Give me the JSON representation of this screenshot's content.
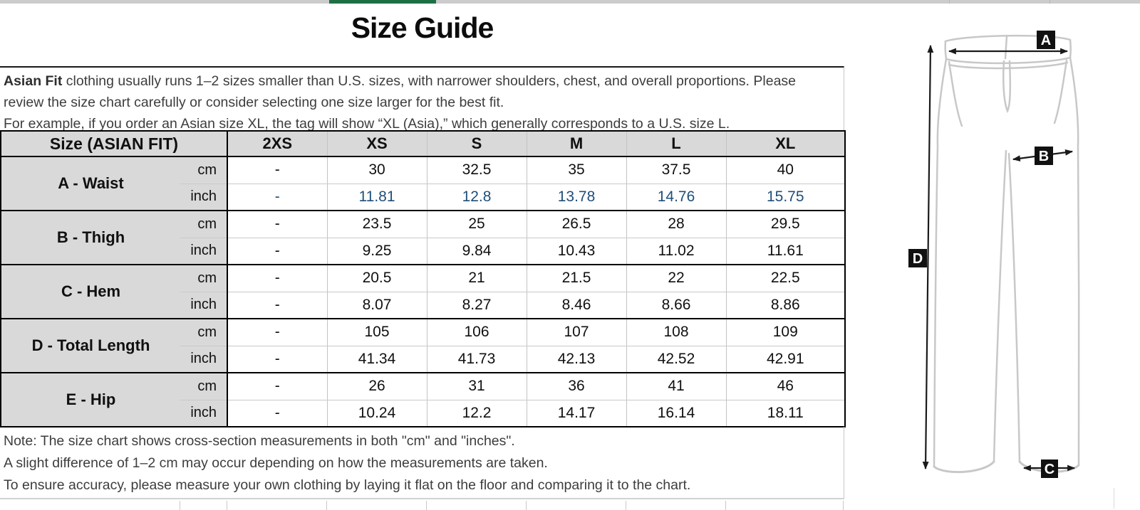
{
  "title": "Size Guide",
  "intro": {
    "bold_lead": "Asian Fit",
    "line1_rest": " clothing usually runs 1–2 sizes smaller than U.S. sizes, with narrower shoulders, chest, and overall proportions. Please review the size chart carefully or consider selecting one size larger for the best fit.",
    "line2": "For example, if you order an Asian size XL, the tag will show “XL (Asia),” which generally corresponds to a U.S. size L."
  },
  "table": {
    "header": {
      "label": "Size (ASIAN FIT)",
      "sizes": [
        "2XS",
        "XS",
        "S",
        "M",
        "L",
        "XL"
      ]
    },
    "unit_labels": {
      "cm": "cm",
      "inch": "inch"
    },
    "rows": [
      {
        "label": "A - Waist",
        "cm": [
          "-",
          "30",
          "32.5",
          "35",
          "37.5",
          "40"
        ],
        "inch": [
          "-",
          "11.81",
          "12.8",
          "13.78",
          "14.76",
          "15.75"
        ],
        "inch_blue": true
      },
      {
        "label": "B - Thigh",
        "cm": [
          "-",
          "23.5",
          "25",
          "26.5",
          "28",
          "29.5"
        ],
        "inch": [
          "-",
          "9.25",
          "9.84",
          "10.43",
          "11.02",
          "11.61"
        ],
        "inch_blue": false
      },
      {
        "label": "C - Hem",
        "cm": [
          "-",
          "20.5",
          "21",
          "21.5",
          "22",
          "22.5"
        ],
        "inch": [
          "-",
          "8.07",
          "8.27",
          "8.46",
          "8.66",
          "8.86"
        ],
        "inch_blue": false
      },
      {
        "label": "D - Total Length",
        "cm": [
          "-",
          "105",
          "106",
          "107",
          "108",
          "109"
        ],
        "inch": [
          "-",
          "41.34",
          "41.73",
          "42.13",
          "42.52",
          "42.91"
        ],
        "inch_blue": false
      },
      {
        "label": "E - Hip",
        "cm": [
          "-",
          "26",
          "31",
          "36",
          "41",
          "46"
        ],
        "inch": [
          "-",
          "10.24",
          "12.2",
          "14.17",
          "16.14",
          "18.11"
        ],
        "inch_blue": false
      }
    ]
  },
  "notes": [
    "Note: The size chart shows cross-section measurements in both \"cm\" and \"inches\".",
    "A slight difference of 1–2 cm may occur depending on how the measurements are taken.",
    "To ensure accuracy, please measure your own clothing by laying it flat on the floor and comparing it to the chart."
  ],
  "diagram": {
    "labels": [
      "A",
      "B",
      "C",
      "D"
    ]
  },
  "colors": {
    "accent_blue": "#1f4e79",
    "header_gray": "#d9d9d9",
    "selection_green": "#1d7044",
    "outline_gray": "#c8c8c8"
  }
}
